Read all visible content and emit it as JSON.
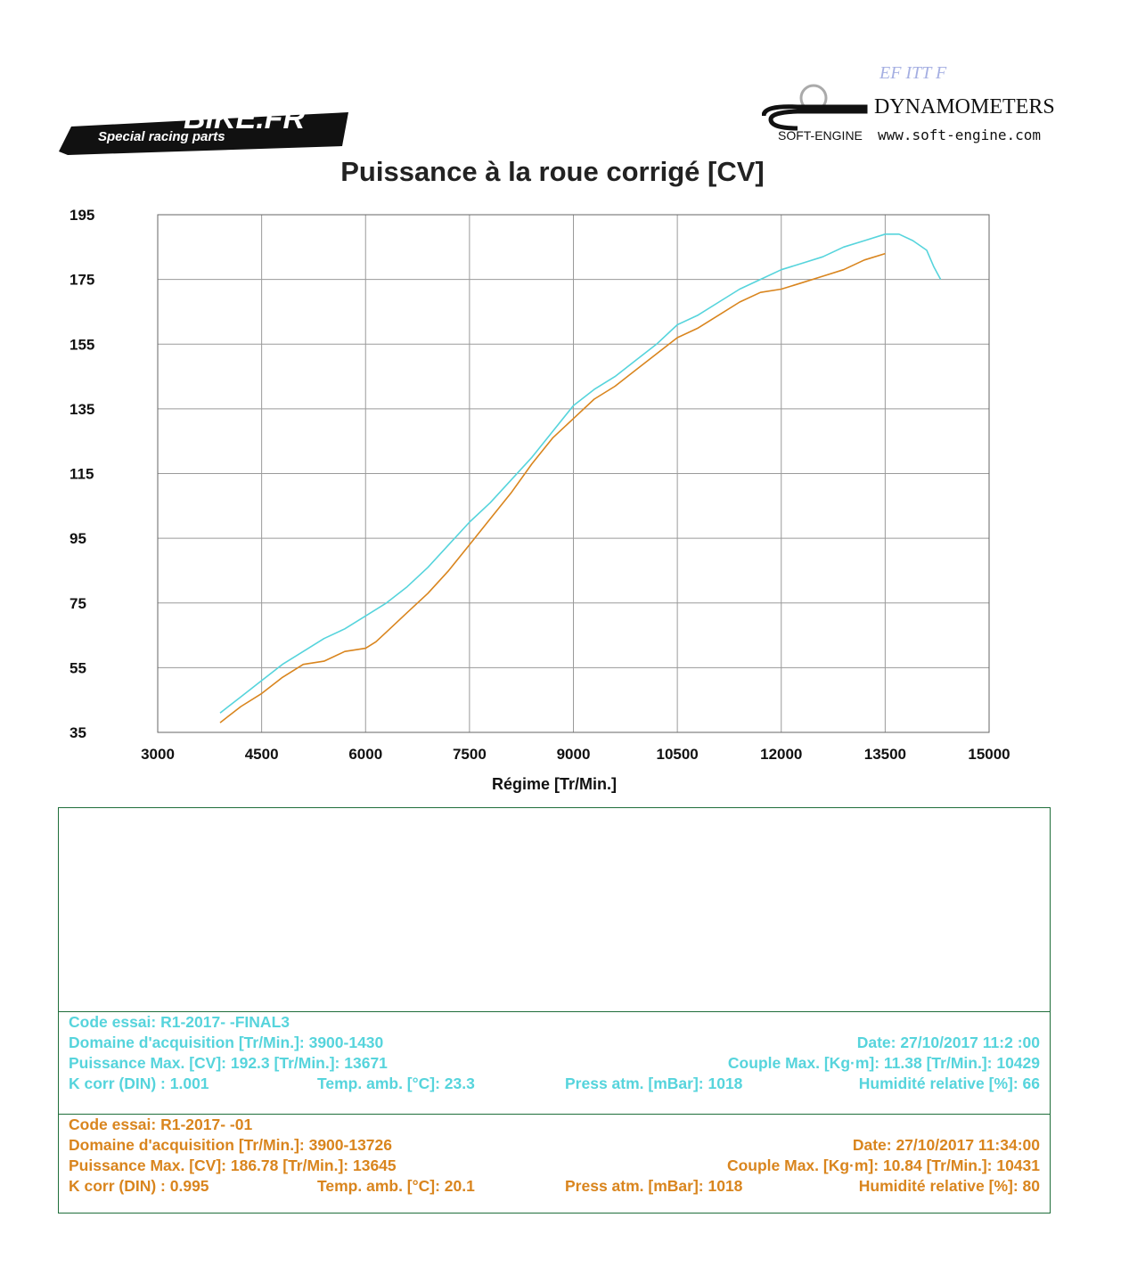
{
  "logos": {
    "left_brand": "BIKE.FR",
    "left_tagline": "Special racing parts",
    "right_brand": "DYNAMOMETERS",
    "right_maker": "SOFT-ENGINE",
    "right_url": "www.soft-engine.com",
    "right_faint": "EF  ITT  F"
  },
  "chart_data": {
    "type": "line",
    "title": "Puissance à la roue corrigé [CV]",
    "xlabel": "Régime [Tr/Min.]",
    "ylabel": "",
    "xlim": [
      3000,
      15000
    ],
    "ylim": [
      35,
      195
    ],
    "xticks": [
      3000,
      4500,
      6000,
      7500,
      9000,
      10500,
      12000,
      13500,
      15000
    ],
    "yticks": [
      35,
      55,
      75,
      95,
      115,
      135,
      155,
      175,
      195
    ],
    "grid": true,
    "series": [
      {
        "name": "R1-2017 FINAL3",
        "color": "#56d4dc",
        "x": [
          3900,
          4200,
          4500,
          4800,
          5100,
          5400,
          5700,
          6000,
          6300,
          6600,
          6900,
          7200,
          7500,
          7800,
          8100,
          8400,
          8700,
          9000,
          9300,
          9600,
          9900,
          10200,
          10500,
          10800,
          11100,
          11400,
          11700,
          12000,
          12300,
          12600,
          12900,
          13200,
          13500,
          13700,
          13900,
          14100,
          14200,
          14300
        ],
        "y": [
          41,
          46,
          51,
          56,
          60,
          64,
          67,
          71,
          75,
          80,
          86,
          93,
          100,
          106,
          113,
          120,
          128,
          136,
          141,
          145,
          150,
          155,
          161,
          164,
          168,
          172,
          175,
          178,
          180,
          182,
          185,
          187,
          189,
          189,
          187,
          184,
          179,
          175
        ]
      },
      {
        "name": "R1-2017 01",
        "color": "#d9851e",
        "x": [
          3900,
          4200,
          4500,
          4800,
          5100,
          5400,
          5700,
          6000,
          6150,
          6300,
          6600,
          6900,
          7200,
          7500,
          7800,
          8100,
          8400,
          8700,
          9000,
          9300,
          9600,
          9900,
          10200,
          10500,
          10800,
          11100,
          11400,
          11700,
          12000,
          12300,
          12600,
          12900,
          13200,
          13500
        ],
        "y": [
          38,
          43,
          47,
          52,
          56,
          57,
          60,
          61,
          63,
          66,
          72,
          78,
          85,
          93,
          101,
          109,
          118,
          126,
          132,
          138,
          142,
          147,
          152,
          157,
          160,
          164,
          168,
          171,
          172,
          174,
          176,
          178,
          181,
          183
        ]
      }
    ]
  },
  "runs": [
    {
      "code": "Code essai: R1-2017-           -FINAL3",
      "domain": "Domaine d'acquisition [Tr/Min.]: 3900-1430 ",
      "date": "Date: 27/10/2017   11:2  :00",
      "power": "Puissance Max. [CV]: 192.3   [Tr/Min.]: 13671",
      "couple": "Couple Max. [Kg·m]: 11.38   [Tr/Min.]: 10429",
      "kcorr": "K corr  (DIN) : 1.001",
      "temp": "Temp. amb. [°C]: 23.3",
      "press": "Press atm. [mBar]: 1018",
      "hum": "Humidité relative [%]: 66"
    },
    {
      "code": "Code essai: R1-2017-          -01",
      "domain": "Domaine d'acquisition [Tr/Min.]: 3900-13726",
      "date": "Date: 27/10/2017   11:34:00",
      "power": "Puissance Max. [CV]: 186.78   [Tr/Min.]: 13645",
      "couple": "Couple Max. [Kg·m]: 10.84   [Tr/Min.]: 10431",
      "kcorr": "K corr  (DIN) : 0.995",
      "temp": "Temp. amb. [°C]: 20.1",
      "press": "Press atm. [mBar]: 1018",
      "hum": "Humidité relative [%]: 80"
    }
  ]
}
